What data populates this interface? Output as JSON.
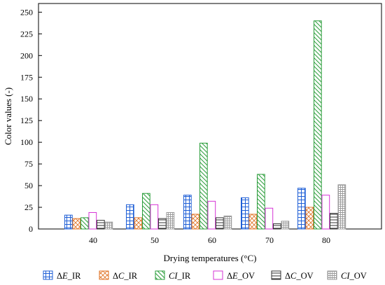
{
  "chart_data": {
    "type": "bar",
    "xlabel": "Drying temperatures (°C)",
    "ylabel": "Color values (-)",
    "ylim": [
      0,
      260
    ],
    "yticks": [
      0,
      25,
      50,
      75,
      100,
      125,
      150,
      175,
      200,
      225,
      250
    ],
    "grid": false,
    "legend_position": "bottom",
    "categories": [
      "40",
      "50",
      "60",
      "70",
      "80"
    ],
    "series": [
      {
        "name": "ΔE_IR",
        "name_parts": [
          "Δ",
          "E",
          "_IR"
        ],
        "color": "#1f5fd6",
        "pattern": "grid",
        "values": [
          16,
          28,
          39,
          36,
          47
        ]
      },
      {
        "name": "ΔC_IR",
        "name_parts": [
          "Δ",
          "C",
          "_IR"
        ],
        "color": "#e0762a",
        "pattern": "cross",
        "values": [
          12,
          13,
          17,
          17,
          25
        ]
      },
      {
        "name": "CI_IR",
        "name_parts": [
          "",
          "CI",
          "_IR"
        ],
        "color": "#2a9d3a",
        "pattern": "diag",
        "values": [
          13,
          41,
          99,
          63,
          240
        ]
      },
      {
        "name": "ΔE_OV",
        "name_parts": [
          "Δ",
          "E",
          "_OV"
        ],
        "color": "#d633d6",
        "pattern": "none",
        "values": [
          19,
          28,
          32,
          24,
          39
        ]
      },
      {
        "name": "ΔC_OV",
        "name_parts": [
          "Δ",
          "C",
          "_OV"
        ],
        "color": "#333333",
        "pattern": "hline",
        "values": [
          10,
          12,
          13,
          6,
          18
        ]
      },
      {
        "name": "CI_OV",
        "name_parts": [
          "",
          "CI",
          "_OV"
        ],
        "color": "#9a9a9a",
        "pattern": "fgrid",
        "values": [
          8,
          19,
          15,
          9,
          51
        ]
      }
    ]
  }
}
